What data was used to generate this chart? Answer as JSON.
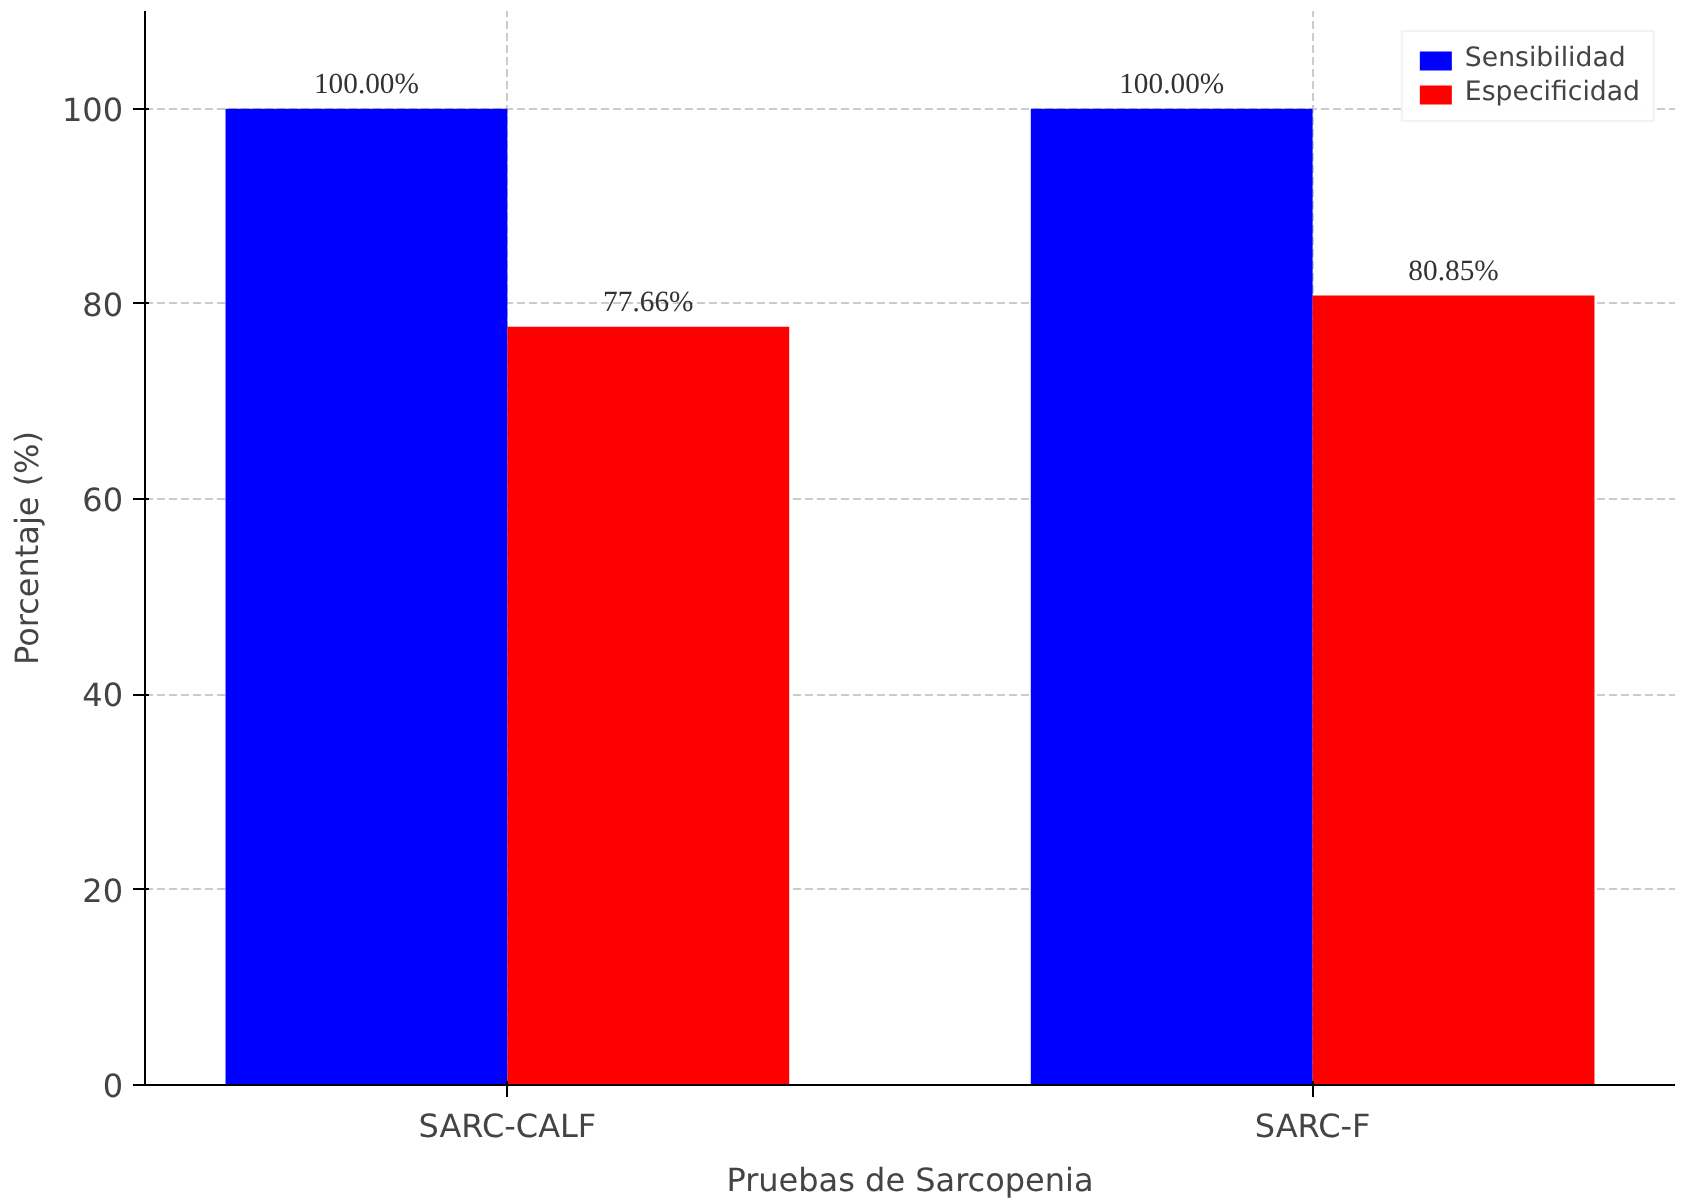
{
  "chart_data": {
    "type": "bar",
    "xlabel": "Pruebas de Sarcopenia",
    "ylabel": "Porcentaje (%)",
    "categories": [
      "SARC-CALF",
      "SARC-F"
    ],
    "series": [
      {
        "name": "Sensibilidad",
        "color": "#0000ff",
        "values": [
          100,
          100
        ],
        "value_labels": [
          "100.00%",
          "100.00%"
        ]
      },
      {
        "name": "Especificidad",
        "color": "#ff0000",
        "values": [
          77.66,
          80.85
        ],
        "value_labels": [
          "77.66%",
          "80.85%"
        ]
      }
    ],
    "ylim": [
      0,
      110
    ],
    "yticks": [
      0,
      20,
      40,
      60,
      80,
      100
    ],
    "grid": true,
    "legend": "top right"
  }
}
